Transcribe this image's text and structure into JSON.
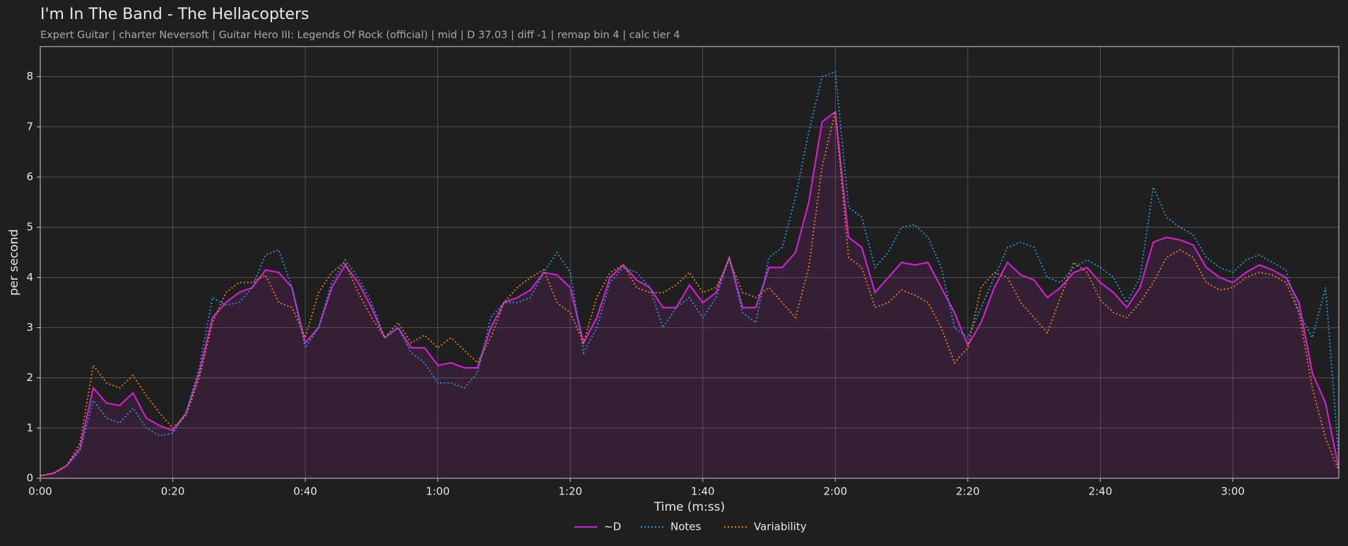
{
  "chart_data": {
    "type": "line",
    "title": "I'm In The Band - The Hellacopters",
    "subtitle": "Expert Guitar  |  charter Neversoft  |  Guitar Hero III: Legends Of Rock (official)  |  mid  |  D 37.03  |  diff -1  |  remap bin 4  |  calc tier 4",
    "xlabel": "Time (m:ss)",
    "ylabel": "per second",
    "xlim": [
      0,
      196
    ],
    "ylim": [
      0,
      8.6
    ],
    "xticks": [
      {
        "value": 0,
        "label": "0:00"
      },
      {
        "value": 20,
        "label": "0:20"
      },
      {
        "value": 40,
        "label": "0:40"
      },
      {
        "value": 60,
        "label": "1:00"
      },
      {
        "value": 80,
        "label": "1:20"
      },
      {
        "value": 100,
        "label": "1:40"
      },
      {
        "value": 120,
        "label": "2:00"
      },
      {
        "value": 140,
        "label": "2:20"
      },
      {
        "value": 160,
        "label": "2:40"
      },
      {
        "value": 180,
        "label": "3:00"
      }
    ],
    "yticks": [
      0,
      1,
      2,
      3,
      4,
      5,
      6,
      7,
      8
    ],
    "grid": true,
    "legend": "bottom",
    "x": [
      0,
      2,
      4,
      6,
      8,
      10,
      12,
      14,
      16,
      18,
      20,
      22,
      24,
      26,
      28,
      30,
      32,
      34,
      36,
      38,
      40,
      42,
      44,
      46,
      48,
      50,
      52,
      54,
      56,
      58,
      60,
      62,
      64,
      66,
      68,
      70,
      72,
      74,
      76,
      78,
      80,
      82,
      84,
      86,
      88,
      90,
      92,
      94,
      96,
      98,
      100,
      102,
      104,
      106,
      108,
      110,
      112,
      114,
      116,
      118,
      120,
      122,
      124,
      126,
      128,
      130,
      132,
      134,
      136,
      138,
      140,
      142,
      144,
      146,
      148,
      150,
      152,
      154,
      156,
      158,
      160,
      162,
      164,
      166,
      168,
      170,
      172,
      174,
      176,
      178,
      180,
      182,
      184,
      186,
      188,
      190,
      192,
      194,
      196
    ],
    "series": [
      {
        "name": "~D",
        "color": "#cc22cc",
        "style": "solid",
        "fill": true,
        "values": [
          0.05,
          0.1,
          0.25,
          0.6,
          1.8,
          1.5,
          1.45,
          1.7,
          1.2,
          1.05,
          0.95,
          1.3,
          2.1,
          3.2,
          3.5,
          3.7,
          3.8,
          4.15,
          4.1,
          3.8,
          2.7,
          3.0,
          3.8,
          4.25,
          3.9,
          3.4,
          2.8,
          3.0,
          2.6,
          2.6,
          2.25,
          2.3,
          2.2,
          2.2,
          3.0,
          3.5,
          3.6,
          3.75,
          4.1,
          4.05,
          3.8,
          2.7,
          3.2,
          4.0,
          4.25,
          3.95,
          3.8,
          3.4,
          3.4,
          3.85,
          3.5,
          3.7,
          4.4,
          3.4,
          3.4,
          4.2,
          4.2,
          4.5,
          5.5,
          7.1,
          7.3,
          4.8,
          4.6,
          3.7,
          4.0,
          4.3,
          4.25,
          4.3,
          3.8,
          3.3,
          2.65,
          3.1,
          3.8,
          4.3,
          4.05,
          3.95,
          3.6,
          3.8,
          4.1,
          4.2,
          3.9,
          3.7,
          3.4,
          3.8,
          4.7,
          4.8,
          4.75,
          4.65,
          4.2,
          4.0,
          3.9,
          4.1,
          4.25,
          4.15,
          4.0,
          3.5,
          2.1,
          1.5,
          0.2
        ]
      },
      {
        "name": "Notes",
        "color": "#2a8fd0",
        "style": "dotted",
        "fill": false,
        "values": [
          0.05,
          0.1,
          0.25,
          0.55,
          1.55,
          1.2,
          1.1,
          1.4,
          1.0,
          0.85,
          0.9,
          1.3,
          2.2,
          3.6,
          3.45,
          3.5,
          3.8,
          4.45,
          4.55,
          3.8,
          2.6,
          3.0,
          3.9,
          4.35,
          4.0,
          3.5,
          2.8,
          3.0,
          2.5,
          2.3,
          1.9,
          1.9,
          1.8,
          2.1,
          3.2,
          3.5,
          3.5,
          3.6,
          4.1,
          4.5,
          4.1,
          2.5,
          3.0,
          3.9,
          4.2,
          4.1,
          3.8,
          3.0,
          3.4,
          3.6,
          3.2,
          3.6,
          4.4,
          3.3,
          3.1,
          4.4,
          4.6,
          5.6,
          6.9,
          8.0,
          8.1,
          5.4,
          5.2,
          4.2,
          4.5,
          5.0,
          5.05,
          4.8,
          4.2,
          3.0,
          2.8,
          3.4,
          4.0,
          4.6,
          4.7,
          4.6,
          4.0,
          3.9,
          4.2,
          4.35,
          4.2,
          4.0,
          3.5,
          4.0,
          5.8,
          5.2,
          5.0,
          4.85,
          4.4,
          4.2,
          4.1,
          4.35,
          4.45,
          4.3,
          4.15,
          3.3,
          2.8,
          3.8,
          0.4
        ]
      },
      {
        "name": "Variability",
        "color": "#e07a1f",
        "style": "dotted",
        "fill": false,
        "values": [
          0.05,
          0.1,
          0.25,
          0.7,
          2.25,
          1.9,
          1.8,
          2.05,
          1.65,
          1.3,
          1.0,
          1.25,
          2.0,
          3.1,
          3.7,
          3.9,
          3.9,
          4.05,
          3.5,
          3.4,
          2.8,
          3.7,
          4.1,
          4.3,
          3.7,
          3.2,
          2.8,
          3.1,
          2.7,
          2.85,
          2.6,
          2.8,
          2.55,
          2.3,
          2.8,
          3.5,
          3.8,
          4.0,
          4.15,
          3.5,
          3.3,
          2.7,
          3.6,
          4.1,
          4.25,
          3.8,
          3.7,
          3.7,
          3.85,
          4.1,
          3.7,
          3.8,
          4.35,
          3.7,
          3.6,
          3.8,
          3.5,
          3.2,
          4.2,
          6.2,
          7.3,
          4.4,
          4.2,
          3.4,
          3.5,
          3.75,
          3.65,
          3.5,
          3.0,
          2.3,
          2.6,
          3.8,
          4.1,
          4.0,
          3.5,
          3.2,
          2.9,
          3.6,
          4.3,
          4.1,
          3.55,
          3.3,
          3.2,
          3.5,
          3.9,
          4.4,
          4.55,
          4.4,
          3.9,
          3.75,
          3.8,
          4.0,
          4.1,
          4.05,
          3.9,
          3.3,
          1.8,
          0.8,
          0.15
        ]
      }
    ]
  }
}
